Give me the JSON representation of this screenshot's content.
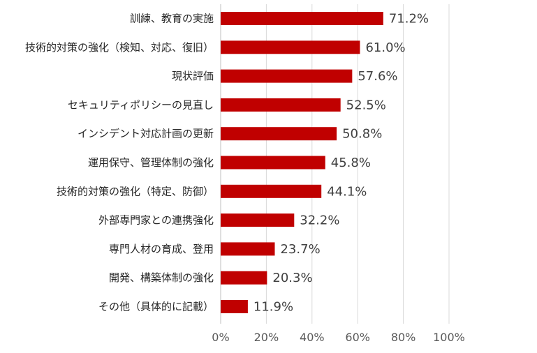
{
  "chart_data": {
    "type": "bar",
    "orientation": "horizontal",
    "categories": [
      "訓練、教育の実施",
      "技術的対策の強化（検知、対応、復旧）",
      "現状評価",
      "セキュリティポリシーの見直し",
      "インシデント対応計画の更新",
      "運用保守、管理体制の強化",
      "技術的対策の強化（特定、防御）",
      "外部専門家との連携強化",
      "専門人材の育成、登用",
      "開発、構築体制の強化",
      "その他（具体的に記載）"
    ],
    "values": [
      71.2,
      61.0,
      57.6,
      52.5,
      50.8,
      45.8,
      44.1,
      32.2,
      23.7,
      20.3,
      11.9
    ],
    "value_labels": [
      "71.2%",
      "61.0%",
      "57.6%",
      "52.5%",
      "50.8%",
      "45.8%",
      "44.1%",
      "32.2%",
      "23.7%",
      "20.3%",
      "11.9%"
    ],
    "xlim": [
      0,
      100
    ],
    "x_ticks": [
      0,
      20,
      40,
      60,
      80,
      100
    ],
    "x_tick_labels": [
      "0%",
      "20%",
      "40%",
      "60%",
      "80%",
      "100%"
    ],
    "grid": true,
    "legend": "none",
    "bar_color": "#c00000"
  }
}
